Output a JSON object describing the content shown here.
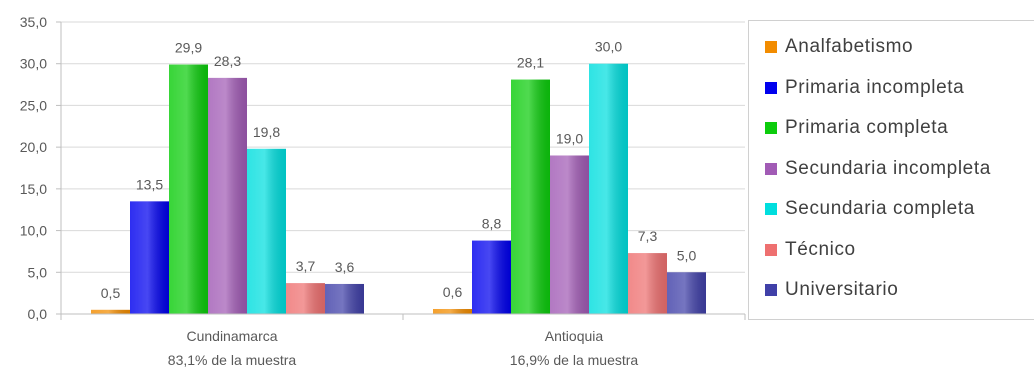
{
  "chart_data": {
    "type": "bar",
    "categories": [
      [
        "Cundinamarca",
        "83,1% de la muestra"
      ],
      [
        "Antioquia",
        "16,9% de la muestra"
      ]
    ],
    "series": [
      {
        "name": "Analfabetismo",
        "color": "#f28c00",
        "values": [
          0.5,
          0.6
        ],
        "labels": [
          "0,5",
          "0,6"
        ]
      },
      {
        "name": "Primaria incompleta",
        "color": "#0000ee",
        "values": [
          13.5,
          8.8
        ],
        "labels": [
          "13,5",
          "8,8"
        ]
      },
      {
        "name": "Primaria completa",
        "color": "#0ccc0c",
        "values": [
          29.9,
          28.1
        ],
        "labels": [
          "29,9",
          "28,1"
        ]
      },
      {
        "name": "Secundaria incompleta",
        "color": "#a15bb5",
        "values": [
          28.3,
          19.0
        ],
        "labels": [
          "28,3",
          "19,0"
        ]
      },
      {
        "name": "Secundaria completa",
        "color": "#00dede",
        "values": [
          19.8,
          30.0
        ],
        "labels": [
          "19,8",
          "30,0"
        ]
      },
      {
        "name": "Técnico",
        "color": "#ee7070",
        "values": [
          3.7,
          7.3
        ],
        "labels": [
          "3,7",
          "7,3"
        ]
      },
      {
        "name": "Universitario",
        "color": "#4040a8",
        "values": [
          3.6,
          5.0
        ],
        "labels": [
          "3,6",
          "5,0"
        ]
      }
    ],
    "y_ticks": [
      "0,0",
      "5,0",
      "10,0",
      "15,0",
      "20,0",
      "25,0",
      "30,0",
      "35,0"
    ],
    "ylim": [
      0,
      35
    ],
    "grid": true,
    "legend_position": "right"
  }
}
